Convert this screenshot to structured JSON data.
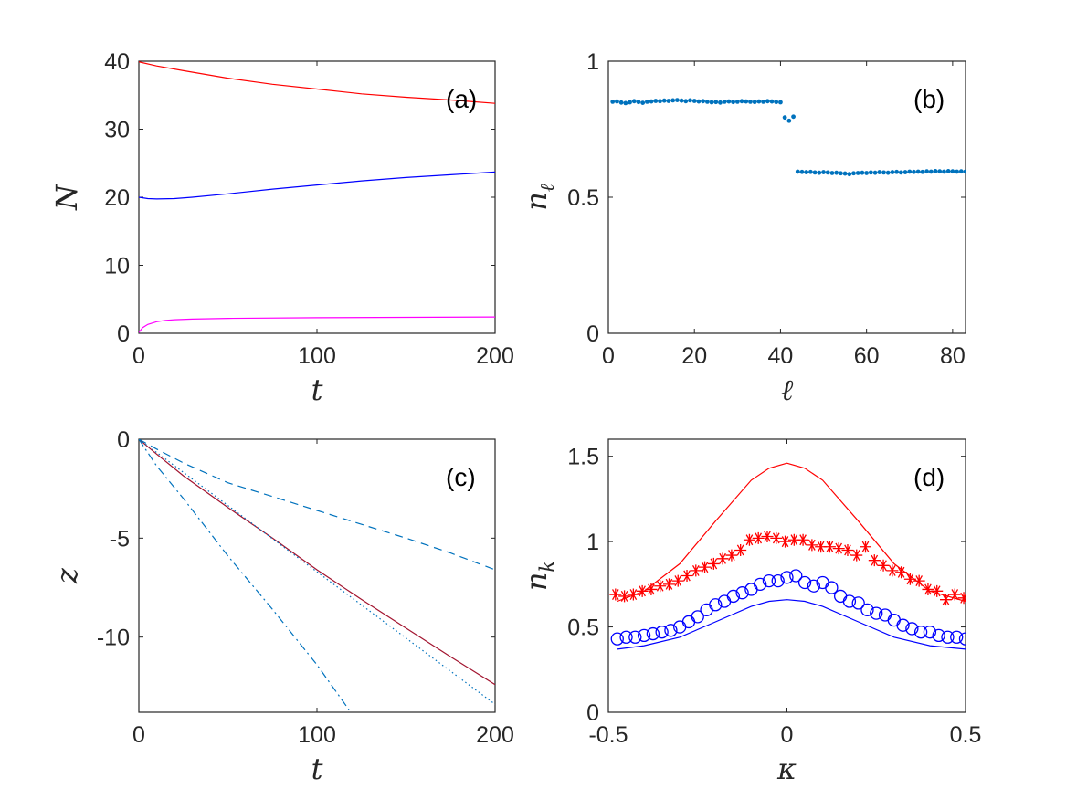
{
  "figure": {
    "panel_count": 4
  },
  "chart_data": [
    {
      "id": "a",
      "type": "line",
      "panel_label": "(a)",
      "xlabel": "t",
      "ylabel": "N",
      "xlim": [
        0,
        200
      ],
      "ylim": [
        0,
        40
      ],
      "xticks": [
        0,
        100,
        200
      ],
      "xtick_labels": [
        "0",
        "100",
        "200"
      ],
      "yticks": [
        0,
        10,
        20,
        30,
        40
      ],
      "ytick_labels": [
        "0",
        "10",
        "20",
        "30",
        "40"
      ],
      "series": [
        {
          "name": "red",
          "color": "#ff0000",
          "style": "solid",
          "x": [
            0,
            10,
            25,
            50,
            75,
            100,
            125,
            150,
            175,
            200
          ],
          "y": [
            39.9,
            39.3,
            38.6,
            37.5,
            36.6,
            35.9,
            35.2,
            34.7,
            34.3,
            33.8
          ]
        },
        {
          "name": "blue",
          "color": "#0000ff",
          "style": "solid",
          "x": [
            0,
            5,
            10,
            20,
            30,
            50,
            75,
            100,
            125,
            150,
            175,
            200
          ],
          "y": [
            20.0,
            19.8,
            19.75,
            19.8,
            20.0,
            20.5,
            21.2,
            21.8,
            22.4,
            22.9,
            23.3,
            23.7
          ]
        },
        {
          "name": "magenta",
          "color": "#ff00ff",
          "style": "solid",
          "x": [
            0,
            2,
            5,
            10,
            15,
            20,
            30,
            50,
            100,
            150,
            200
          ],
          "y": [
            0.1,
            0.8,
            1.3,
            1.7,
            1.9,
            2.0,
            2.1,
            2.2,
            2.3,
            2.35,
            2.4
          ]
        }
      ]
    },
    {
      "id": "b",
      "type": "scatter",
      "panel_label": "(b)",
      "xlabel": "ℓ",
      "ylabel_base": "n",
      "ylabel_sub": "ℓ",
      "xlim": [
        0,
        83
      ],
      "ylim": [
        0,
        1
      ],
      "xticks": [
        0,
        20,
        40,
        60,
        80
      ],
      "xtick_labels": [
        "0",
        "20",
        "40",
        "60",
        "80"
      ],
      "yticks": [
        0,
        0.5,
        1
      ],
      "ytick_labels": [
        "0",
        "0.5",
        "1"
      ],
      "series": [
        {
          "name": "n_l",
          "color": "#0072bd",
          "marker": "dot",
          "x": [
            1,
            2,
            3,
            4,
            5,
            6,
            7,
            8,
            9,
            10,
            11,
            12,
            13,
            14,
            15,
            16,
            17,
            18,
            19,
            20,
            21,
            22,
            23,
            24,
            25,
            26,
            27,
            28,
            29,
            30,
            31,
            32,
            33,
            34,
            35,
            36,
            37,
            38,
            39,
            40,
            41,
            42,
            43,
            44,
            45,
            46,
            47,
            48,
            49,
            50,
            51,
            52,
            53,
            54,
            55,
            56,
            57,
            58,
            59,
            60,
            61,
            62,
            63,
            64,
            65,
            66,
            67,
            68,
            69,
            70,
            71,
            72,
            73,
            74,
            75,
            76,
            77,
            78,
            79,
            80,
            81,
            82,
            83
          ],
          "y": [
            0.851,
            0.852,
            0.848,
            0.846,
            0.849,
            0.853,
            0.85,
            0.847,
            0.851,
            0.852,
            0.854,
            0.853,
            0.855,
            0.854,
            0.856,
            0.857,
            0.855,
            0.853,
            0.856,
            0.854,
            0.852,
            0.853,
            0.851,
            0.849,
            0.85,
            0.848,
            0.851,
            0.852,
            0.85,
            0.851,
            0.853,
            0.852,
            0.851,
            0.85,
            0.852,
            0.851,
            0.853,
            0.852,
            0.85,
            0.849,
            0.793,
            0.781,
            0.796,
            0.594,
            0.593,
            0.592,
            0.593,
            0.591,
            0.59,
            0.592,
            0.591,
            0.589,
            0.59,
            0.588,
            0.587,
            0.585,
            0.588,
            0.589,
            0.59,
            0.589,
            0.591,
            0.59,
            0.592,
            0.591,
            0.59,
            0.592,
            0.593,
            0.591,
            0.592,
            0.594,
            0.593,
            0.594,
            0.593,
            0.595,
            0.594,
            0.596,
            0.595,
            0.594,
            0.596,
            0.595,
            0.594,
            0.595,
            0.594
          ]
        }
      ]
    },
    {
      "id": "c",
      "type": "line",
      "panel_label": "(c)",
      "xlabel": "t",
      "ylabel": "z",
      "xlim": [
        0,
        200
      ],
      "ylim": [
        -13.8,
        0
      ],
      "xticks": [
        0,
        100,
        200
      ],
      "xtick_labels": [
        "0",
        "100",
        "200"
      ],
      "yticks": [
        0,
        -5,
        -10
      ],
      "ytick_labels": [
        "0",
        "-5",
        "-10"
      ],
      "series": [
        {
          "name": "solid",
          "color": "#a2142f",
          "style": "solid",
          "x": [
            0,
            10,
            25,
            50,
            75,
            100,
            125,
            150,
            175,
            200
          ],
          "y": [
            0,
            -0.75,
            -1.85,
            -3.45,
            -5.0,
            -6.6,
            -8.1,
            -9.55,
            -11.0,
            -12.4
          ]
        },
        {
          "name": "dotted",
          "color": "#0072bd",
          "style": "dotted",
          "x": [
            0,
            50,
            100,
            150,
            200
          ],
          "y": [
            0,
            -3.35,
            -6.7,
            -10.05,
            -13.4
          ]
        },
        {
          "name": "dashed",
          "color": "#0072bd",
          "style": "dashed",
          "x": [
            0,
            10,
            25,
            50,
            75,
            100,
            125,
            150,
            175,
            200
          ],
          "y": [
            0,
            -0.5,
            -1.2,
            -2.2,
            -2.9,
            -3.6,
            -4.3,
            -5.0,
            -5.75,
            -6.6
          ]
        },
        {
          "name": "dashdot",
          "color": "#0072bd",
          "style": "dashdot",
          "x": [
            0,
            10,
            25,
            50,
            75,
            100,
            119
          ],
          "y": [
            0,
            -1.35,
            -3.0,
            -5.9,
            -8.6,
            -11.4,
            -13.8
          ]
        }
      ]
    },
    {
      "id": "d",
      "type": "line",
      "panel_label": "(d)",
      "xlabel": "κ",
      "ylabel_base": "n",
      "ylabel_sub": "k",
      "xlim": [
        -0.5,
        0.5
      ],
      "ylim": [
        0,
        1.6
      ],
      "xticks": [
        -0.5,
        0,
        0.5
      ],
      "xtick_labels": [
        "-0.5",
        "0",
        "0.5"
      ],
      "yticks": [
        0,
        0.5,
        1,
        1.5
      ],
      "ytick_labels": [
        "0",
        "0.5",
        "1",
        "1.5"
      ],
      "series": [
        {
          "name": "red-line",
          "color": "#ff0000",
          "style": "solid",
          "x": [
            -0.475,
            -0.4,
            -0.3,
            -0.2,
            -0.1,
            -0.05,
            0,
            0.05,
            0.1,
            0.2,
            0.3,
            0.4,
            0.5
          ],
          "y": [
            0.65,
            0.71,
            0.87,
            1.12,
            1.36,
            1.43,
            1.46,
            1.43,
            1.36,
            1.12,
            0.87,
            0.71,
            0.65
          ]
        },
        {
          "name": "blue-line",
          "color": "#0000ff",
          "style": "solid",
          "x": [
            -0.475,
            -0.4,
            -0.3,
            -0.2,
            -0.1,
            -0.05,
            0,
            0.05,
            0.1,
            0.2,
            0.3,
            0.4,
            0.5
          ],
          "y": [
            0.37,
            0.39,
            0.44,
            0.53,
            0.62,
            0.65,
            0.66,
            0.65,
            0.62,
            0.53,
            0.44,
            0.39,
            0.37
          ]
        },
        {
          "name": "red-stars",
          "color": "#ff0000",
          "marker": "star",
          "x": [
            -0.48,
            -0.455,
            -0.43,
            -0.405,
            -0.38,
            -0.355,
            -0.33,
            -0.305,
            -0.28,
            -0.255,
            -0.23,
            -0.205,
            -0.18,
            -0.155,
            -0.13,
            -0.105,
            -0.08,
            -0.055,
            -0.03,
            -0.005,
            0.02,
            0.045,
            0.07,
            0.095,
            0.12,
            0.145,
            0.17,
            0.195,
            0.22,
            0.245,
            0.27,
            0.295,
            0.32,
            0.345,
            0.37,
            0.395,
            0.42,
            0.445,
            0.47,
            0.495
          ],
          "y": [
            0.69,
            0.68,
            0.69,
            0.71,
            0.72,
            0.74,
            0.75,
            0.77,
            0.8,
            0.83,
            0.85,
            0.87,
            0.9,
            0.92,
            0.95,
            1.01,
            1.02,
            1.03,
            1.02,
            1.0,
            1.01,
            1.01,
            0.98,
            0.97,
            0.97,
            0.96,
            0.95,
            0.92,
            0.97,
            0.89,
            0.86,
            0.83,
            0.82,
            0.78,
            0.77,
            0.72,
            0.71,
            0.66,
            0.69,
            0.67
          ]
        },
        {
          "name": "blue-circles",
          "color": "#0000ff",
          "marker": "circle",
          "x": [
            -0.475,
            -0.45,
            -0.425,
            -0.4,
            -0.375,
            -0.35,
            -0.325,
            -0.3,
            -0.275,
            -0.25,
            -0.225,
            -0.2,
            -0.175,
            -0.15,
            -0.125,
            -0.1,
            -0.075,
            -0.05,
            -0.025,
            0,
            0.025,
            0.05,
            0.075,
            0.1,
            0.125,
            0.15,
            0.175,
            0.2,
            0.225,
            0.25,
            0.275,
            0.3,
            0.325,
            0.35,
            0.375,
            0.4,
            0.425,
            0.45,
            0.475,
            0.5
          ],
          "y": [
            0.43,
            0.44,
            0.44,
            0.45,
            0.46,
            0.47,
            0.48,
            0.5,
            0.53,
            0.56,
            0.6,
            0.63,
            0.65,
            0.68,
            0.7,
            0.72,
            0.75,
            0.77,
            0.77,
            0.79,
            0.8,
            0.76,
            0.74,
            0.76,
            0.73,
            0.68,
            0.65,
            0.64,
            0.6,
            0.58,
            0.57,
            0.54,
            0.51,
            0.49,
            0.47,
            0.47,
            0.45,
            0.44,
            0.44,
            0.43
          ]
        }
      ]
    }
  ]
}
